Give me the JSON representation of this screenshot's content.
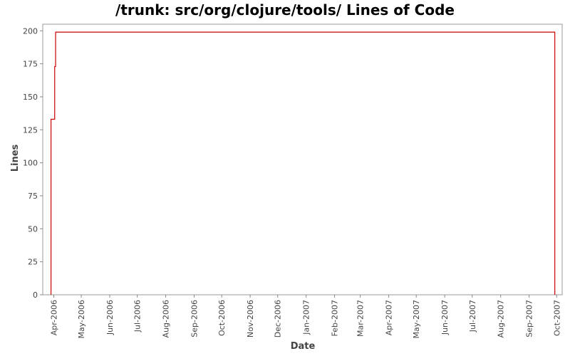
{
  "chart_data": {
    "type": "line",
    "title": "/trunk: src/org/clojure/tools/ Lines of Code",
    "xlabel": "Date",
    "ylabel": "Lines",
    "x_axis_type": "date",
    "xlim": [
      "2006-03-20",
      "2007-10-07"
    ],
    "ylim": [
      0,
      205
    ],
    "y_ticks": [
      0,
      25,
      50,
      75,
      100,
      125,
      150,
      175,
      200
    ],
    "x_ticks": [
      {
        "date": "2006-04-01",
        "label": "Apr-2006"
      },
      {
        "date": "2006-05-01",
        "label": "May-2006"
      },
      {
        "date": "2006-06-01",
        "label": "Jun-2006"
      },
      {
        "date": "2006-07-01",
        "label": "Jul-2006"
      },
      {
        "date": "2006-08-01",
        "label": "Aug-2006"
      },
      {
        "date": "2006-09-01",
        "label": "Sep-2006"
      },
      {
        "date": "2006-10-01",
        "label": "Oct-2006"
      },
      {
        "date": "2006-11-01",
        "label": "Nov-2006"
      },
      {
        "date": "2006-12-01",
        "label": "Dec-2006"
      },
      {
        "date": "2007-01-01",
        "label": "Jan-2007"
      },
      {
        "date": "2007-02-01",
        "label": "Feb-2007"
      },
      {
        "date": "2007-03-01",
        "label": "Mar-2007"
      },
      {
        "date": "2007-04-01",
        "label": "Apr-2007"
      },
      {
        "date": "2007-05-01",
        "label": "May-2007"
      },
      {
        "date": "2007-06-01",
        "label": "Jun-2007"
      },
      {
        "date": "2007-07-01",
        "label": "Jul-2007"
      },
      {
        "date": "2007-08-01",
        "label": "Aug-2007"
      },
      {
        "date": "2007-09-01",
        "label": "Sep-2007"
      },
      {
        "date": "2007-10-01",
        "label": "Oct-2007"
      }
    ],
    "step": true,
    "grid": false,
    "series": [
      {
        "color": "#cc0000",
        "points": [
          {
            "x": "2006-03-29",
            "y": 0
          },
          {
            "x": "2006-03-29",
            "y": 133
          },
          {
            "x": "2006-04-02",
            "y": 173
          },
          {
            "x": "2006-04-03",
            "y": 199
          },
          {
            "x": "2007-09-29",
            "y": 199
          },
          {
            "x": "2007-09-29",
            "y": 0
          }
        ]
      }
    ]
  }
}
